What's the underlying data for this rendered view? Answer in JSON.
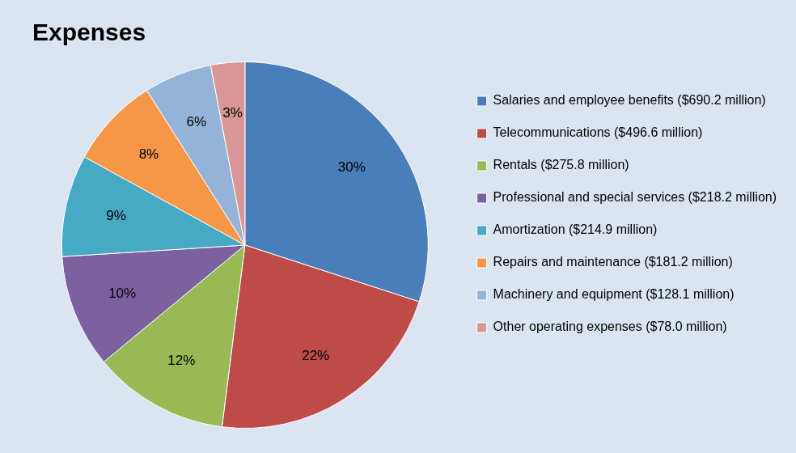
{
  "chart_data": {
    "type": "pie",
    "title": "Expenses",
    "categories": [
      "Salaries and employee benefits ($690.2 million)",
      "Telecommunications ($496.6 million)",
      "Rentals ($275.8 million)",
      "Professional and special services ($218.2 million)",
      "Amortization ($214.9 million)",
      "Repairs and maintenance ($181.2 million)",
      "Machinery and equipment ($128.1 million)",
      "Other operating expenses ($78.0 million)"
    ],
    "values": [
      30,
      22,
      12,
      10,
      9,
      8,
      6,
      3
    ],
    "value_labels": [
      "30%",
      "22%",
      "12%",
      "10%",
      "9%",
      "8%",
      "6%",
      "3%"
    ],
    "colors": [
      "#4a7ebb",
      "#be4b48",
      "#98b954",
      "#7d60a0",
      "#46aac5",
      "#f79646",
      "#95b3d7",
      "#d99694"
    ],
    "legend": "right",
    "data_labels": true
  }
}
